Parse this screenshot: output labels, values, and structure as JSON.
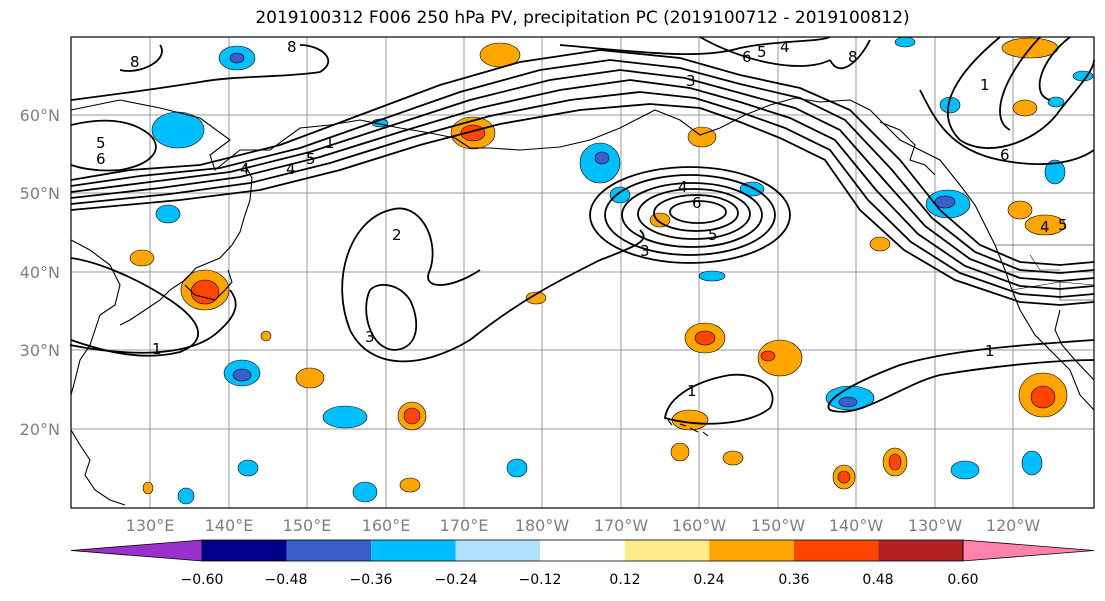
{
  "title": "2019100312 F006 250 hPa PV, precipitation PC (2019100712 - 2019100812)",
  "map": {
    "lat_labels": [
      "60°N",
      "50°N",
      "40°N",
      "30°N",
      "20°N"
    ],
    "lon_labels": [
      "130°E",
      "140°E",
      "150°E",
      "160°E",
      "170°E",
      "180°W",
      "170°W",
      "160°W",
      "150°W",
      "140°W",
      "130°W",
      "120°W"
    ],
    "contour_labels": [
      "8",
      "8",
      "8",
      "5",
      "6",
      "4",
      "5",
      "4",
      "6",
      "5",
      "4",
      "6",
      "5",
      "4",
      "3",
      "1",
      "1",
      "1",
      "2",
      "3",
      "4",
      "5",
      "6",
      "1",
      "3",
      "1"
    ]
  },
  "colorbar": {
    "ticks": [
      "−0.60",
      "−0.48",
      "−0.36",
      "−0.24",
      "−0.12",
      "0.12",
      "0.24",
      "0.36",
      "0.48",
      "0.60"
    ],
    "colors": [
      "#9932cc",
      "#00008b",
      "#3a5fcd",
      "#00bfff",
      "#b0e2ff",
      "#ffffff",
      "#ffec8b",
      "#ffa500",
      "#ff4500",
      "#b22222",
      "#ff82ab"
    ]
  }
}
